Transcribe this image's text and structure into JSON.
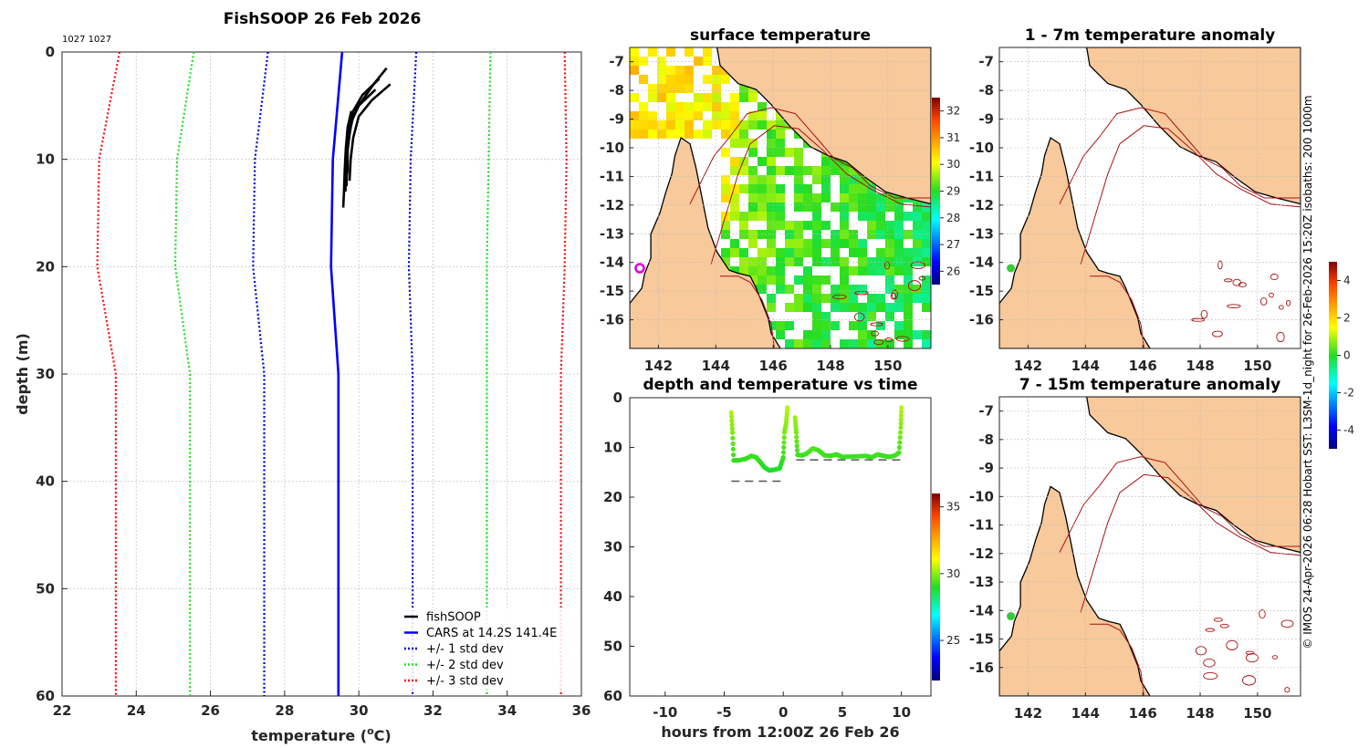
{
  "chart_data": [
    {
      "id": "profile",
      "type": "line",
      "title": "FishSOOP 26 Feb 2026",
      "subtitle": "1027 1027",
      "xlabel": "temperature (°C)",
      "xlabel_main": "temperature (",
      "xlabel_sup": "o",
      "xlabel_end": "C)",
      "ylabel": "depth (m)",
      "xlim": [
        22,
        36
      ],
      "ylim": [
        60,
        0
      ],
      "xticks": [
        "22",
        "24",
        "26",
        "28",
        "30",
        "32",
        "34",
        "36"
      ],
      "yticks": [
        "0",
        "10",
        "20",
        "30",
        "40",
        "50",
        "60"
      ],
      "grid": true,
      "legend_position": "bottom-right",
      "legend": [
        "fishSOOP",
        "CARS at 14.2S 141.4E",
        "+/- 1 std dev",
        "+/- 2 std dev",
        "+/- 3 std dev"
      ],
      "cars": {
        "temp": [
          29.55,
          29.3,
          29.25,
          29.45,
          29.45
        ],
        "depth": [
          0,
          10,
          20,
          30,
          60
        ]
      },
      "std_offset": {
        "plus": [
          0.5,
          0.5,
          0.5,
          0.5,
          0.5
        ],
        "factor": 2.0
      },
      "fishsoop_casts": [
        {
          "depth": [
            1.5,
            3,
            5,
            6,
            7.5,
            9,
            10,
            11,
            12
          ],
          "temp": [
            30.75,
            30.4,
            30.0,
            29.85,
            29.75,
            29.7,
            29.7,
            29.7,
            29.65
          ]
        },
        {
          "depth": [
            2.5,
            4,
            5.5,
            6.5,
            8,
            9.5,
            11,
            12.5
          ],
          "temp": [
            30.55,
            30.1,
            29.85,
            29.75,
            29.72,
            29.68,
            29.68,
            29.67
          ]
        },
        {
          "depth": [
            3,
            4.5,
            6,
            8,
            10,
            12
          ],
          "temp": [
            30.85,
            30.35,
            30.0,
            29.85,
            29.78,
            29.75
          ]
        },
        {
          "depth": [
            3.5,
            5,
            6.5,
            8.5,
            10.5,
            13
          ],
          "temp": [
            30.45,
            30.0,
            29.8,
            29.72,
            29.66,
            29.64
          ]
        },
        {
          "depth": [
            5.5,
            7,
            9,
            11,
            13,
            14.5
          ],
          "temp": [
            29.8,
            29.7,
            29.65,
            29.62,
            29.6,
            29.58
          ]
        }
      ]
    },
    {
      "id": "surface_temperature",
      "type": "heatmap",
      "title": "surface temperature",
      "xlim": [
        141,
        151.5
      ],
      "ylim": [
        -17,
        -6.5
      ],
      "xticks": [
        "142",
        "144",
        "146",
        "148",
        "150"
      ],
      "yticks": [
        "-7",
        "-8",
        "-9",
        "-10",
        "-11",
        "-12",
        "-13",
        "-14",
        "-15",
        "-16"
      ],
      "colorbar_ticks": [
        "26",
        "27",
        "28",
        "29",
        "30",
        "31",
        "32"
      ],
      "colorbar_range": [
        25.5,
        32.5
      ],
      "marker": {
        "lon": 141.35,
        "lat": -14.2
      }
    },
    {
      "id": "anomaly_1_7",
      "type": "heatmap",
      "title": "1 - 7m temperature anomaly",
      "xlim": [
        141,
        151.5
      ],
      "ylim": [
        -17,
        -6.5
      ],
      "xticks": [
        "142",
        "144",
        "146",
        "148",
        "150"
      ],
      "yticks": [
        "-7",
        "-8",
        "-9",
        "-10",
        "-11",
        "-12",
        "-13",
        "-14",
        "-15",
        "-16"
      ],
      "marker": {
        "lon": 141.35,
        "lat": -14.2
      }
    },
    {
      "id": "anomaly_7_15",
      "type": "heatmap",
      "title": "7 - 15m temperature anomaly",
      "xlim": [
        141,
        151.5
      ],
      "ylim": [
        -17,
        -6.5
      ],
      "xticks": [
        "142",
        "144",
        "146",
        "148",
        "150"
      ],
      "yticks": [
        "-7",
        "-8",
        "-9",
        "-10",
        "-11",
        "-12",
        "-13",
        "-14",
        "-15",
        "-16"
      ],
      "marker": {
        "lon": 141.35,
        "lat": -14.2
      }
    },
    {
      "id": "depth_time",
      "type": "scatter",
      "title": "depth and temperature vs time",
      "xlabel": "hours from 12:00Z 26 Feb 26",
      "xlim": [
        -13,
        12.5
      ],
      "ylim": [
        60,
        0
      ],
      "xticks": [
        "-10",
        "-5",
        "0",
        "5",
        "10"
      ],
      "yticks": [
        "0",
        "10",
        "20",
        "30",
        "40",
        "50",
        "60"
      ],
      "colorbar_ticks": [
        "25",
        "30",
        "35"
      ],
      "colorbar_range": [
        22,
        36
      ],
      "bottom_dashes": [
        {
          "x": [
            -4.4,
            0.1
          ],
          "depth": 16.8
        },
        {
          "x": [
            1.1,
            10.0
          ],
          "depth": 12.5
        }
      ],
      "segments": [
        {
          "x": [
            -4.4,
            -4.3,
            -4.2,
            -3.8,
            -3.2,
            -2.7,
            -2.3,
            -2.0,
            -1.6,
            -1.2,
            -0.8,
            -0.3,
            0.0,
            0.1,
            0.25,
            0.35
          ],
          "depth": [
            3,
            7,
            12.6,
            12.6,
            12.3,
            11.7,
            12.0,
            12.8,
            14.0,
            14.6,
            14.5,
            14.2,
            12,
            7,
            5,
            2
          ]
        },
        {
          "x": [
            1.0,
            1.1,
            1.2,
            1.6,
            2.0,
            2.5,
            3.0,
            3.5,
            4.0,
            4.5,
            5.0,
            6.0,
            7.0,
            7.5,
            8.0,
            8.5,
            9.0,
            9.5,
            9.8,
            9.95,
            10.0
          ],
          "depth": [
            4,
            7,
            11.5,
            11.6,
            11.2,
            10.2,
            10.6,
            11.6,
            11.7,
            11.4,
            11.9,
            11.8,
            11.7,
            12.0,
            11.4,
            11.7,
            11.9,
            11.6,
            11,
            6,
            2
          ]
        }
      ]
    }
  ],
  "side_text": "© IMOS 24-Apr-2026 06:28 Hobart SST: L3SM-1d_night for 26-Feb-2026 15:20Z isobaths: 200  1000m",
  "anomaly_colorbar": {
    "ticks": [
      "-4",
      "-2",
      "0",
      "2",
      "4"
    ],
    "range": [
      -5,
      5
    ]
  },
  "colors": {
    "land": "#f8c99b",
    "fish": "#000000",
    "cars": "#0000ff",
    "std1": "#0000cc",
    "std2": "#22dd22",
    "std3": "#ee1111",
    "isobath": "#aa1111",
    "marker_sst": "#dd00dd",
    "marker_anom": "#33cc33"
  }
}
